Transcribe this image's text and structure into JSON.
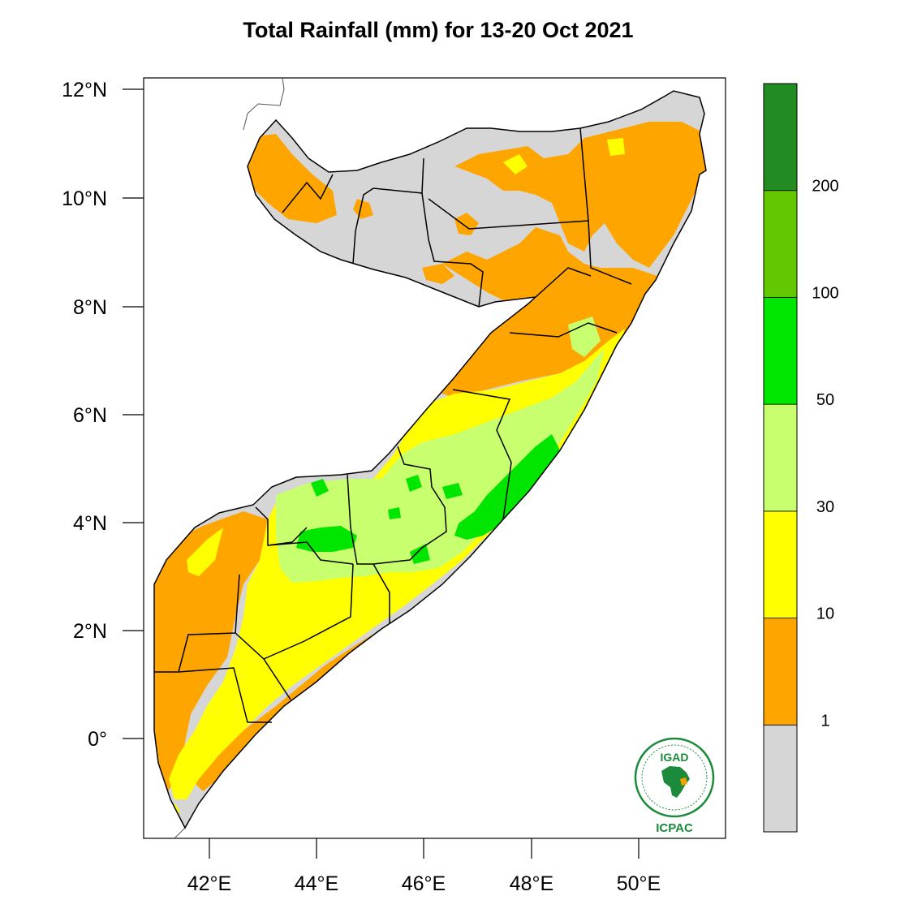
{
  "title": "Total Rainfall (mm) for 13-20 Oct 2021",
  "axes": {
    "y_ticks": [
      "12°N",
      "10°N",
      "8°N",
      "6°N",
      "4°N",
      "2°N",
      "0°"
    ],
    "x_ticks": [
      "42°E",
      "44°E",
      "46°E",
      "48°E",
      "50°E"
    ]
  },
  "legend": {
    "bins": [
      {
        "label": "",
        "color": "#d6d6d6"
      },
      {
        "label": "1",
        "color": "#ffa500"
      },
      {
        "label": "10",
        "color": "#ffff00"
      },
      {
        "label": "30",
        "color": "#c8ff6e"
      },
      {
        "label": "50",
        "color": "#00e600"
      },
      {
        "label": "100",
        "color": "#64c800"
      },
      {
        "label": "200",
        "color": "#228b22"
      }
    ],
    "boundary_labels": [
      "1",
      "10",
      "30",
      "50",
      "100",
      "200"
    ]
  },
  "logo": {
    "top_text": "IGAD",
    "bottom_text": "ICPAC"
  },
  "colors": {
    "dry": "#d6d6d6",
    "light": "#ffa500",
    "moderate": "#ffff00",
    "wet": "#c8ff6e",
    "very_wet": "#00e600",
    "border": "#000000",
    "logo_green": "#1b8a3a"
  }
}
